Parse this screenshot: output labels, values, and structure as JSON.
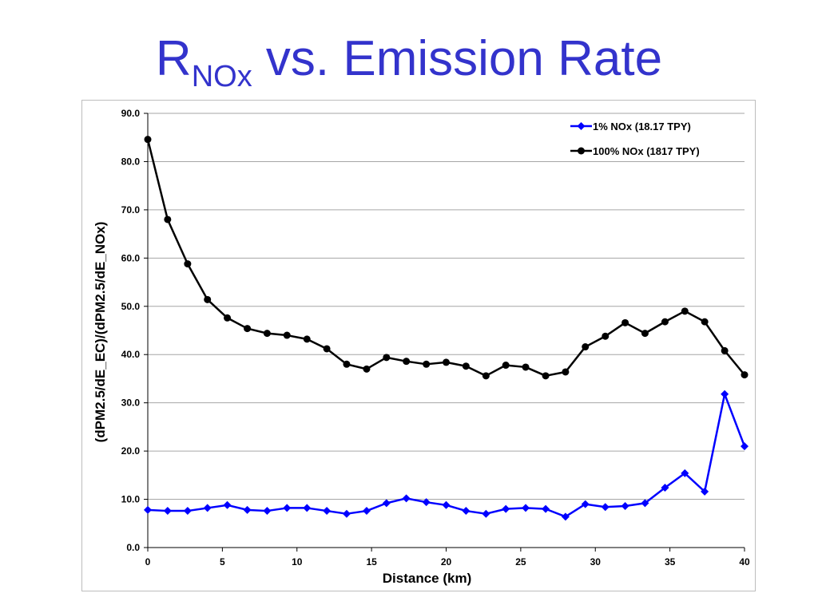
{
  "title": {
    "main": "R",
    "subscript": "NOx",
    "rest": " vs. Emission Rate"
  },
  "colors": {
    "title": "#3333cc",
    "series_1": "#0000ff",
    "series_2": "#000000",
    "gridline": "#a6a6a6"
  },
  "chart_data": {
    "type": "line",
    "xlabel": "Distance (km)",
    "ylabel": "(dPM2.5/dE_EC)/(dPM2.5/dE_NOx)",
    "xlim": [
      0,
      40
    ],
    "ylim": [
      0,
      90
    ],
    "xticks": [
      "0",
      "5",
      "10",
      "15",
      "20",
      "25",
      "30",
      "35",
      "40"
    ],
    "yticks": [
      "0.0",
      "10.0",
      "20.0",
      "30.0",
      "40.0",
      "50.0",
      "60.0",
      "70.0",
      "80.0",
      "90.0"
    ],
    "grid": "horizontal",
    "legend_position": "top-right",
    "x": [
      0,
      1.33,
      2.67,
      4.0,
      5.33,
      6.67,
      8.0,
      9.33,
      10.67,
      12.0,
      13.33,
      14.67,
      16.0,
      17.33,
      18.67,
      20.0,
      21.33,
      22.67,
      24.0,
      25.33,
      26.67,
      28.0,
      29.33,
      30.67,
      32.0,
      33.33,
      34.67,
      36.0,
      37.33,
      38.67,
      40.0
    ],
    "series": [
      {
        "name": "1% NOx (18.17 TPY)",
        "marker": "diamond",
        "color": "#0000ff",
        "values": [
          7.8,
          7.6,
          7.6,
          8.2,
          8.8,
          7.8,
          7.6,
          8.2,
          8.2,
          7.6,
          7.0,
          7.6,
          9.2,
          10.2,
          9.4,
          8.8,
          7.6,
          7.0,
          8.0,
          8.2,
          8.0,
          6.4,
          9.0,
          8.4,
          8.6,
          9.2,
          12.4,
          15.4,
          11.6,
          31.8,
          21.0
        ]
      },
      {
        "name": "100% NOx (1817 TPY)",
        "marker": "circle",
        "color": "#000000",
        "values": [
          84.6,
          68.0,
          58.8,
          51.4,
          47.6,
          45.4,
          44.4,
          44.0,
          43.2,
          41.2,
          38.0,
          37.0,
          39.4,
          38.6,
          38.0,
          38.4,
          37.6,
          35.6,
          37.8,
          37.4,
          35.6,
          36.4,
          41.6,
          43.8,
          46.6,
          44.4,
          46.8,
          49.0,
          46.8,
          40.8,
          35.8
        ]
      }
    ]
  }
}
